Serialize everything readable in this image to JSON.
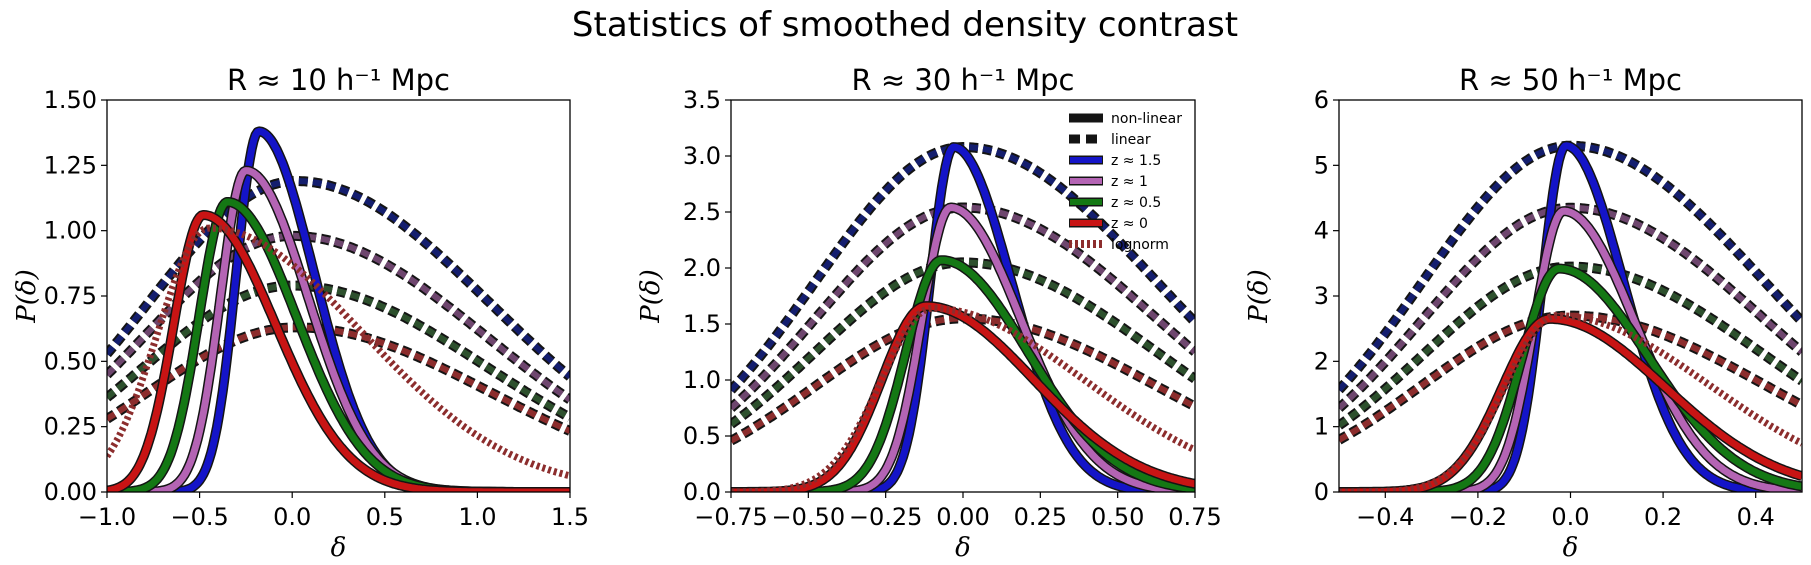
{
  "suptitle": "Statistics of smoothed density contrast",
  "colors": {
    "z15": "#1414c8",
    "z1": "#b464b4",
    "z05": "#147814",
    "z0": "#c81414",
    "lin_z15": "#141e6e",
    "lin_z1": "#6e466e",
    "lin_z05": "#2d502d",
    "lin_z0": "#8c2d2d",
    "edge": "#141414"
  },
  "legend": {
    "entries": [
      {
        "label": "non-linear",
        "style": "solid",
        "color": "#141414"
      },
      {
        "label": "linear",
        "style": "dashed",
        "color": "#141414"
      },
      {
        "label": "z ≈ 1.5",
        "style": "solid",
        "color": "#1414c8"
      },
      {
        "label": "z ≈ 1",
        "style": "solid",
        "color": "#b464b4"
      },
      {
        "label": "z ≈ 0.5",
        "style": "solid",
        "color": "#147814"
      },
      {
        "label": "z ≈ 0",
        "style": "solid",
        "color": "#c81414"
      },
      {
        "label": "lognorm",
        "style": "dotted",
        "color": "#8c2d2d"
      }
    ]
  },
  "chart_data": [
    {
      "type": "line",
      "title": "R ≈ 10 h⁻¹ Mpc",
      "xlabel": "δ",
      "ylabel": "P(δ)",
      "xlim": [
        -1.0,
        1.5
      ],
      "ylim": [
        0,
        1.5
      ],
      "xticks": [
        -1.0,
        -0.5,
        0.0,
        0.5,
        1.0,
        1.5
      ],
      "xtick_labels": [
        "−1.0",
        "−0.5",
        "0.0",
        "0.5",
        "1.0",
        "1.5"
      ],
      "yticks": [
        0,
        0.25,
        0.5,
        0.75,
        1.0,
        1.25,
        1.5
      ],
      "ytick_labels": [
        "0.00",
        "0.25",
        "0.50",
        "0.75",
        "1.00",
        "1.25",
        "1.50"
      ],
      "series": [
        {
          "name": "z ≈ 1.5",
          "kind": "nonlinear",
          "peak_x": -0.18,
          "peak_y": 1.38
        },
        {
          "name": "z ≈ 1",
          "kind": "nonlinear",
          "peak_x": -0.25,
          "peak_y": 1.23
        },
        {
          "name": "z ≈ 0.5",
          "kind": "nonlinear",
          "peak_x": -0.35,
          "peak_y": 1.11
        },
        {
          "name": "z ≈ 0",
          "kind": "nonlinear",
          "peak_x": -0.48,
          "peak_y": 1.06
        },
        {
          "name": "z ≈ 1.5",
          "kind": "linear",
          "peak_x": 0.02,
          "peak_y": 1.19
        },
        {
          "name": "z ≈ 1",
          "kind": "linear",
          "peak_x": 0.0,
          "peak_y": 0.98
        },
        {
          "name": "z ≈ 0.5",
          "kind": "linear",
          "peak_x": 0.0,
          "peak_y": 0.79
        },
        {
          "name": "z ≈ 0",
          "kind": "linear",
          "peak_x": 0.02,
          "peak_y": 0.63
        },
        {
          "name": "lognorm",
          "kind": "lognorm",
          "peak_x": -0.45,
          "peak_y": 1.01
        }
      ]
    },
    {
      "type": "line",
      "title": "R ≈ 30 h⁻¹ Mpc",
      "xlabel": "δ",
      "ylabel": "P(δ)",
      "xlim": [
        -0.75,
        0.75
      ],
      "ylim": [
        0,
        3.5
      ],
      "xticks": [
        -0.75,
        -0.5,
        -0.25,
        0.0,
        0.25,
        0.5,
        0.75
      ],
      "xtick_labels": [
        "−0.75",
        "−0.50",
        "−0.25",
        "0.00",
        "0.25",
        "0.50",
        "0.75"
      ],
      "yticks": [
        0,
        0.5,
        1.0,
        1.5,
        2.0,
        2.5,
        3.0,
        3.5
      ],
      "ytick_labels": [
        "0.0",
        "0.5",
        "1.0",
        "1.5",
        "2.0",
        "2.5",
        "3.0",
        "3.5"
      ],
      "series": [
        {
          "name": "z ≈ 1.5",
          "kind": "nonlinear",
          "peak_x": -0.03,
          "peak_y": 3.08
        },
        {
          "name": "z ≈ 1",
          "kind": "nonlinear",
          "peak_x": -0.04,
          "peak_y": 2.54
        },
        {
          "name": "z ≈ 0.5",
          "kind": "nonlinear",
          "peak_x": -0.07,
          "peak_y": 2.07
        },
        {
          "name": "z ≈ 0",
          "kind": "nonlinear",
          "peak_x": -0.12,
          "peak_y": 1.66
        },
        {
          "name": "z ≈ 1.5",
          "kind": "linear",
          "peak_x": 0.0,
          "peak_y": 3.08
        },
        {
          "name": "z ≈ 1",
          "kind": "linear",
          "peak_x": 0.0,
          "peak_y": 2.54
        },
        {
          "name": "z ≈ 0.5",
          "kind": "linear",
          "peak_x": 0.0,
          "peak_y": 2.05
        },
        {
          "name": "z ≈ 0",
          "kind": "linear",
          "peak_x": 0.0,
          "peak_y": 1.55
        },
        {
          "name": "lognorm",
          "kind": "lognorm",
          "peak_x": -0.1,
          "peak_y": 1.64
        }
      ]
    },
    {
      "type": "line",
      "title": "R ≈ 50 h⁻¹ Mpc",
      "xlabel": "δ",
      "ylabel": "P(δ)",
      "xlim": [
        -0.5,
        0.5
      ],
      "ylim": [
        0,
        6
      ],
      "xticks": [
        -0.4,
        -0.2,
        0.0,
        0.2,
        0.4
      ],
      "xtick_labels": [
        "−0.4",
        "−0.2",
        "0.0",
        "0.2",
        "0.4"
      ],
      "yticks": [
        0,
        1,
        2,
        3,
        4,
        5,
        6
      ],
      "ytick_labels": [
        "0",
        "1",
        "2",
        "3",
        "4",
        "5",
        "6"
      ],
      "series": [
        {
          "name": "z ≈ 1.5",
          "kind": "nonlinear",
          "peak_x": -0.01,
          "peak_y": 5.3
        },
        {
          "name": "z ≈ 1",
          "kind": "nonlinear",
          "peak_x": -0.015,
          "peak_y": 4.3
        },
        {
          "name": "z ≈ 0.5",
          "kind": "nonlinear",
          "peak_x": -0.025,
          "peak_y": 3.42
        },
        {
          "name": "z ≈ 0",
          "kind": "nonlinear",
          "peak_x": -0.045,
          "peak_y": 2.65
        },
        {
          "name": "z ≈ 1.5",
          "kind": "linear",
          "peak_x": 0.0,
          "peak_y": 5.3
        },
        {
          "name": "z ≈ 1",
          "kind": "linear",
          "peak_x": 0.0,
          "peak_y": 4.35
        },
        {
          "name": "z ≈ 0.5",
          "kind": "linear",
          "peak_x": 0.0,
          "peak_y": 3.45
        },
        {
          "name": "z ≈ 0",
          "kind": "linear",
          "peak_x": 0.0,
          "peak_y": 2.7
        },
        {
          "name": "lognorm",
          "kind": "lognorm",
          "peak_x": -0.03,
          "peak_y": 2.7
        }
      ]
    }
  ]
}
